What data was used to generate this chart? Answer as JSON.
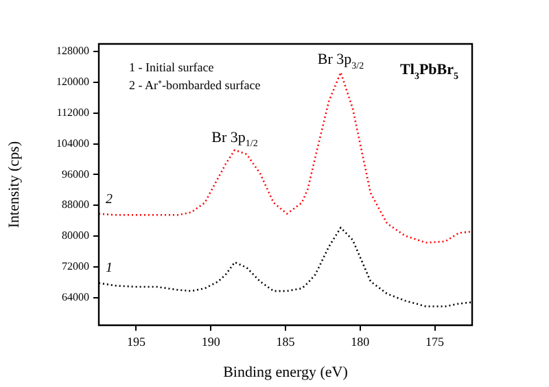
{
  "chart_data": {
    "type": "line",
    "xlabel": "Binding energy (eV)",
    "ylabel": "Intensity (cps)",
    "x": [
      197.5,
      196.4,
      195,
      193.6,
      192.2,
      191.3,
      190.4,
      189.5,
      189.0,
      188.4,
      187.6,
      186.7,
      185.8,
      184.9,
      183.9,
      183.5,
      183.0,
      182.1,
      181.3,
      180.5,
      179.3,
      178.2,
      177.0,
      175.6,
      174.3,
      173.4,
      172.5
    ],
    "series": [
      {
        "name": "2",
        "color": "#ff0000",
        "values": [
          85800,
          85500,
          85500,
          85500,
          85500,
          86200,
          88700,
          95200,
          98800,
          102400,
          101300,
          96300,
          88700,
          85800,
          88700,
          92300,
          100600,
          115000,
          122600,
          113200,
          91200,
          83300,
          80100,
          78300,
          78600,
          80800,
          81200
        ]
      },
      {
        "name": "1",
        "color": "#000000",
        "values": [
          67800,
          67100,
          66800,
          66800,
          66000,
          65700,
          66400,
          68200,
          70000,
          73200,
          71800,
          68200,
          65700,
          65700,
          66400,
          67800,
          70000,
          77200,
          82200,
          79000,
          68200,
          65000,
          63200,
          61700,
          61700,
          62400,
          62800
        ]
      }
    ],
    "xlim": [
      197.5,
      172.5
    ],
    "xticks": [
      195,
      190,
      185,
      180,
      175
    ],
    "ylim": [
      56800,
      130000
    ],
    "yticks": [
      64000,
      72000,
      80000,
      88000,
      96000,
      104000,
      112000,
      120000,
      128000
    ],
    "grid": false,
    "legend": false,
    "line_style": "dotted",
    "marker": "none",
    "annotations": [
      "1 - Initial surface",
      "2 - Ar⁺-bombarded surface",
      "Tl$_{3}$PbBr$_{5}$",
      {
        "text": "Br 3p$_{1/2}$",
        "x": 188.4,
        "y": 102400
      },
      {
        "text": "Br 3p$_{3/2}$",
        "x": 181.3,
        "y": 122600
      }
    ]
  }
}
